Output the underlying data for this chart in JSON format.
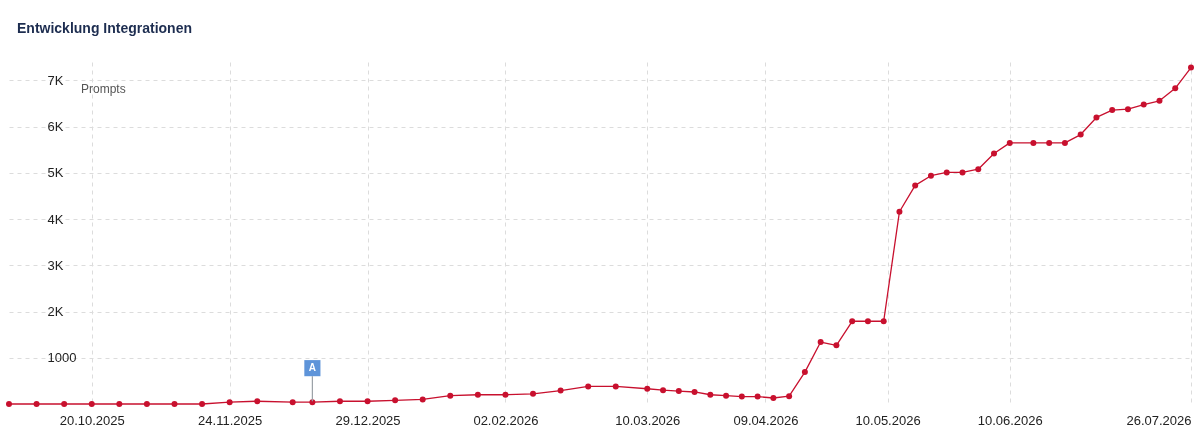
{
  "chart_data": {
    "type": "line",
    "title": "Entwicklung Integrationen",
    "annotations": [
      "Prompts",
      {
        "text": "A",
        "x": "2025-12-15",
        "y": 40
      }
    ],
    "x": [
      "2025-09-29",
      "2025-10-06",
      "2025-10-13",
      "2025-10-20",
      "2025-10-27",
      "2025-11-03",
      "2025-11-10",
      "2025-11-17",
      "2025-11-24",
      "2025-12-01",
      "2025-12-10",
      "2025-12-15",
      "2025-12-22",
      "2025-12-29",
      "2026-01-05",
      "2026-01-12",
      "2026-01-19",
      "2026-01-26",
      "2026-02-02",
      "2026-02-09",
      "2026-02-16",
      "2026-02-23",
      "2026-03-02",
      "2026-03-10",
      "2026-03-14",
      "2026-03-18",
      "2026-03-22",
      "2026-03-26",
      "2026-03-30",
      "2026-04-03",
      "2026-04-07",
      "2026-04-11",
      "2026-04-15",
      "2026-04-19",
      "2026-04-23",
      "2026-04-27",
      "2026-05-01",
      "2026-05-05",
      "2026-05-09",
      "2026-05-13",
      "2026-05-17",
      "2026-05-21",
      "2026-05-25",
      "2026-05-29",
      "2026-06-02",
      "2026-06-06",
      "2026-06-10",
      "2026-06-16",
      "2026-06-20",
      "2026-06-24",
      "2026-06-28",
      "2026-07-02",
      "2026-07-06",
      "2026-07-10",
      "2026-07-14",
      "2026-07-18",
      "2026-07-22",
      "2026-07-26"
    ],
    "series": [
      {
        "color": "#c8102e",
        "values": [
          0,
          0,
          0,
          0,
          0,
          0,
          0,
          0,
          40,
          60,
          40,
          40,
          60,
          60,
          80,
          100,
          180,
          200,
          200,
          220,
          290,
          380,
          380,
          330,
          300,
          280,
          260,
          200,
          180,
          160,
          160,
          130,
          170,
          690,
          1340,
          1270,
          1790,
          1790,
          1790,
          4160,
          4730,
          4940,
          5010,
          5010,
          5080,
          5420,
          5650,
          5650,
          5650,
          5650,
          5830,
          6200,
          6360,
          6380,
          6480,
          6560,
          6830,
          7280
        ]
      }
    ],
    "xlim": [
      "2025-09-29",
      "2026-07-26"
    ],
    "xticks": [
      {
        "value": "2025-10-20",
        "label": "20.10.2025"
      },
      {
        "value": "2025-11-24",
        "label": "24.11.2025"
      },
      {
        "value": "2025-12-29",
        "label": "29.12.2025"
      },
      {
        "value": "2026-02-02",
        "label": "02.02.2026"
      },
      {
        "value": "2026-03-10",
        "label": "10.03.2026"
      },
      {
        "value": "2026-04-09",
        "label": "09.04.2026"
      },
      {
        "value": "2026-05-10",
        "label": "10.05.2026"
      },
      {
        "value": "2026-06-10",
        "label": "10.06.2026"
      },
      {
        "value": "2026-07-26",
        "label": "26.07.2026"
      }
    ],
    "ylim": [
      0,
      7400
    ],
    "yticks": [
      1000,
      {
        "value": 2000,
        "label": "2K"
      },
      {
        "value": 3000,
        "label": "3K"
      },
      {
        "value": 4000,
        "label": "4K"
      },
      {
        "value": 5000,
        "label": "5K"
      },
      {
        "value": 6000,
        "label": "6K"
      },
      {
        "value": 7000,
        "label": "7K"
      }
    ],
    "grid": true,
    "marker": "circle",
    "line_style": "solid"
  }
}
